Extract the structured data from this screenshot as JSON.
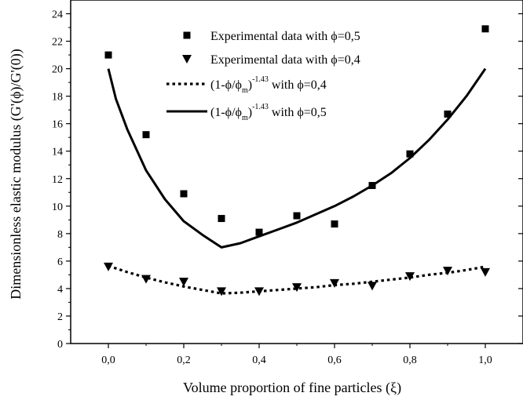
{
  "chart_data": {
    "type": "scatter",
    "xlabel": "Volume proportion of fine particles (ξ)",
    "ylabel": "Dimensionless elastic modulus (G'(ϕ)/G'(0))",
    "xlim": [
      -0.1,
      1.1
    ],
    "ylim": [
      0,
      25
    ],
    "x_ticks": [
      "0,0",
      "0,2",
      "0,4",
      "0,6",
      "0,8",
      "1,0"
    ],
    "x_tick_values": [
      0.0,
      0.2,
      0.4,
      0.6,
      0.8,
      1.0
    ],
    "y_ticks": [
      "0",
      "2",
      "4",
      "6",
      "8",
      "10",
      "12",
      "14",
      "16",
      "18",
      "20",
      "22",
      "24"
    ],
    "y_tick_values": [
      0,
      2,
      4,
      6,
      8,
      10,
      12,
      14,
      16,
      18,
      20,
      22,
      24
    ],
    "grid": false,
    "legend_position": "top-center",
    "legend": [
      {
        "marker": "square",
        "text": "Experimental data with ϕ=0,5"
      },
      {
        "marker": "triangle-down",
        "text": "Experimental data with ϕ=0,4"
      },
      {
        "marker": "dotted-line",
        "main": "(1-ϕ/ϕ",
        "sub": "m",
        "close": ")",
        "sup": "-1.43",
        "tail": " with ϕ=0,4"
      },
      {
        "marker": "solid-line",
        "main": "(1-ϕ/ϕ",
        "sub": "m",
        "close": ")",
        "sup": "-1.43",
        "tail": " with ϕ=0,5"
      }
    ],
    "series": [
      {
        "name": "Experimental data with ϕ=0,5",
        "kind": "scatter",
        "marker": "square",
        "x": [
          0.0,
          0.1,
          0.2,
          0.3,
          0.4,
          0.5,
          0.6,
          0.7,
          0.8,
          0.9,
          1.0
        ],
        "y": [
          21.0,
          15.2,
          10.9,
          9.1,
          8.1,
          9.3,
          8.7,
          11.5,
          13.8,
          16.7,
          22.9
        ]
      },
      {
        "name": "Experimental data with ϕ=0,4",
        "kind": "scatter",
        "marker": "triangle-down",
        "x": [
          0.0,
          0.1,
          0.2,
          0.3,
          0.4,
          0.5,
          0.6,
          0.7,
          0.8,
          0.9,
          1.0
        ],
        "y": [
          5.6,
          4.7,
          4.5,
          3.8,
          3.8,
          4.1,
          4.4,
          4.2,
          4.9,
          5.3,
          5.2
        ]
      },
      {
        "name": "(1-ϕ/ϕm)^-1.43 with ϕ=0,4",
        "kind": "line",
        "style": "dotted",
        "x": [
          0.0,
          0.05,
          0.1,
          0.15,
          0.2,
          0.25,
          0.3,
          0.35,
          0.4,
          0.45,
          0.5,
          0.55,
          0.6,
          0.65,
          0.7,
          0.75,
          0.8,
          0.85,
          0.9,
          0.95,
          1.0
        ],
        "y": [
          5.65,
          5.2,
          4.8,
          4.45,
          4.15,
          3.9,
          3.65,
          3.7,
          3.8,
          3.9,
          4.0,
          4.1,
          4.25,
          4.35,
          4.5,
          4.65,
          4.8,
          5.0,
          5.15,
          5.35,
          5.6
        ]
      },
      {
        "name": "(1-ϕ/ϕm)^-1.43 with ϕ=0,5",
        "kind": "line",
        "style": "solid",
        "x": [
          0.0,
          0.02,
          0.05,
          0.08,
          0.1,
          0.15,
          0.2,
          0.25,
          0.3,
          0.35,
          0.4,
          0.45,
          0.5,
          0.55,
          0.6,
          0.65,
          0.7,
          0.75,
          0.8,
          0.85,
          0.9,
          0.95,
          1.0
        ],
        "y": [
          20.0,
          17.8,
          15.6,
          13.8,
          12.6,
          10.5,
          8.9,
          7.9,
          7.0,
          7.3,
          7.8,
          8.3,
          8.8,
          9.4,
          10.0,
          10.7,
          11.5,
          12.4,
          13.5,
          14.8,
          16.3,
          18.0,
          20.0
        ]
      }
    ]
  }
}
